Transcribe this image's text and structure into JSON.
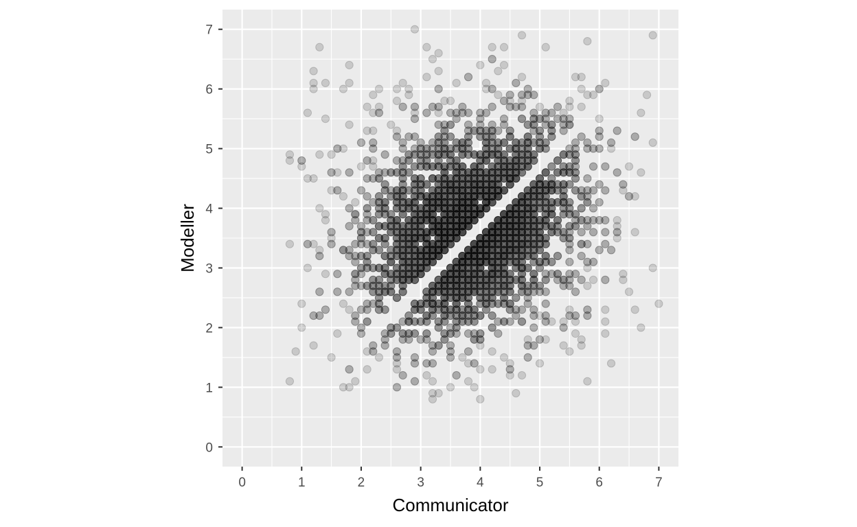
{
  "chart_data": {
    "type": "scatter",
    "xlabel": "Communicator",
    "ylabel": "Modeller",
    "xlim": [
      -0.33,
      7.33
    ],
    "ylim": [
      -0.33,
      7.33
    ],
    "x_ticks": [
      "0",
      "1",
      "2",
      "3",
      "4",
      "5",
      "6",
      "7"
    ],
    "y_ticks": [
      "0",
      "1",
      "2",
      "3",
      "4",
      "5",
      "6",
      "7"
    ],
    "grid": true,
    "point_color": "#000000",
    "point_alpha": 0.15,
    "panel_background": "#ebebeb",
    "description_of_distribution": {
      "x_range": [
        0.8,
        7.0
      ],
      "y_range": [
        0.8,
        7.0
      ],
      "gap_band": "points absent near the diagonal y = x - 0.3 (band width ~0.25)"
    }
  }
}
